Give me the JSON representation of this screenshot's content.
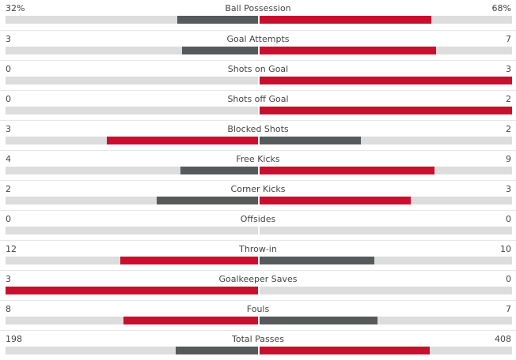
{
  "colors": {
    "leader": "#c8102e",
    "trailer": "#58595b",
    "track": "#dddddd"
  },
  "stats": [
    {
      "name": "Ball Possession",
      "home": "32%",
      "away": "68%",
      "home_share": 0.32,
      "away_share": 0.68
    },
    {
      "name": "Goal Attempts",
      "home": "3",
      "away": "7",
      "home_share": 0.3,
      "away_share": 0.7
    },
    {
      "name": "Shots on Goal",
      "home": "0",
      "away": "3",
      "home_share": 0.0,
      "away_share": 1.0
    },
    {
      "name": "Shots off Goal",
      "home": "0",
      "away": "2",
      "home_share": 0.0,
      "away_share": 1.0
    },
    {
      "name": "Blocked Shots",
      "home": "3",
      "away": "2",
      "home_share": 0.6,
      "away_share": 0.4
    },
    {
      "name": "Free Kicks",
      "home": "4",
      "away": "9",
      "home_share": 0.3077,
      "away_share": 0.6923
    },
    {
      "name": "Corner Kicks",
      "home": "2",
      "away": "3",
      "home_share": 0.4,
      "away_share": 0.6
    },
    {
      "name": "Offsides",
      "home": "0",
      "away": "0",
      "home_share": 0.0,
      "away_share": 0.0
    },
    {
      "name": "Throw-in",
      "home": "12",
      "away": "10",
      "home_share": 0.5455,
      "away_share": 0.4545
    },
    {
      "name": "Goalkeeper Saves",
      "home": "3",
      "away": "0",
      "home_share": 1.0,
      "away_share": 0.0
    },
    {
      "name": "Fouls",
      "home": "8",
      "away": "7",
      "home_share": 0.5333,
      "away_share": 0.4667
    },
    {
      "name": "Total Passes",
      "home": "198",
      "away": "408",
      "home_share": 0.3267,
      "away_share": 0.6733
    }
  ]
}
